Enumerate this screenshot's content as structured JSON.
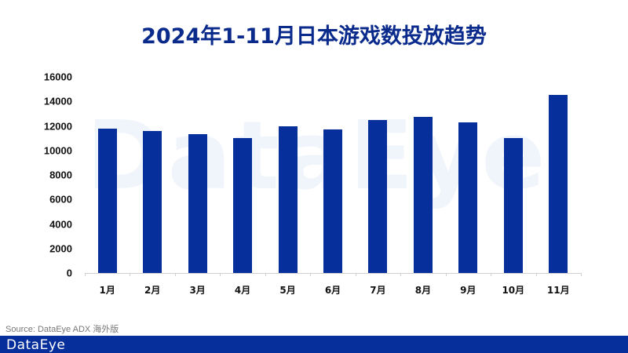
{
  "chart_data": {
    "type": "bar",
    "title": "2024年1-11月日本游戏数投放趋势",
    "xlabel": "",
    "ylabel": "",
    "ylim": [
      0,
      16000
    ],
    "yticks": [
      0,
      2000,
      4000,
      6000,
      8000,
      10000,
      12000,
      14000,
      16000
    ],
    "grid": false,
    "legend": null,
    "categories": [
      "1月",
      "2月",
      "3月",
      "4月",
      "5月",
      "6月",
      "7月",
      "8月",
      "9月",
      "10月",
      "11月"
    ],
    "values": [
      11780,
      11590,
      11330,
      11010,
      11970,
      11710,
      12480,
      12740,
      12290,
      11010,
      14530
    ],
    "bar_color": "#062f9b"
  },
  "header": {
    "title": "2024年1-11月日本游戏数投放趋势"
  },
  "watermark": "DataEye",
  "yaxis": {
    "ticks": [
      "0",
      "2000",
      "4000",
      "6000",
      "8000",
      "10000",
      "12000",
      "14000",
      "16000"
    ]
  },
  "xaxis": {
    "labels": [
      "1月",
      "2月",
      "3月",
      "4月",
      "5月",
      "6月",
      "7月",
      "8月",
      "9月",
      "10月",
      "11月"
    ]
  },
  "footer": {
    "source": "Source: DataEye ADX 海外版",
    "logo": "DataEye"
  },
  "colors": {
    "accent": "#062f9b",
    "title": "#0a2a8c"
  }
}
